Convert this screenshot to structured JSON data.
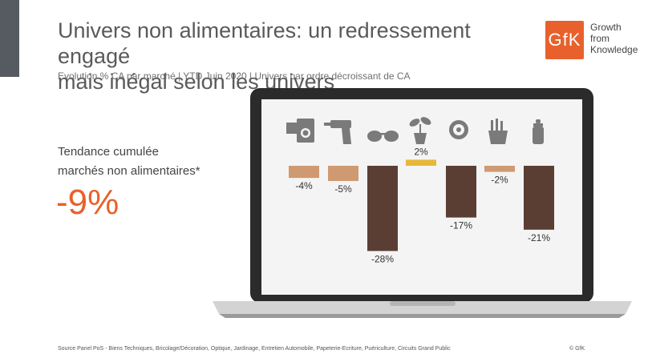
{
  "header": {
    "title_line1": "Univers non alimentaires: un redressement engagé",
    "title_line2": "mais inégal selon les univers",
    "subtitle": "Evolution % CA par marché | YTD Juin 2020 | Univers par ordre décroissant de CA"
  },
  "logo": {
    "mark": "GfK",
    "line1": "Growth",
    "line2": "from",
    "line3": "Knowledge",
    "color": "#e8612c"
  },
  "trend": {
    "label_line1": "Tendance cumulée",
    "label_line2": "marchés non alimentaires*",
    "value": "-9%"
  },
  "footer": {
    "source": "Source Panel PoS - Biens Techniques, Bricolage/Décoration, Optique, Jardinage, Entretien Automobile, Papeterie-Ecriture, Puériculture, Circuits Grand Public",
    "copyright": "© GfK"
  },
  "chart_data": {
    "type": "bar",
    "categories": [
      "appliances-icon",
      "drill-icon",
      "glasses-icon",
      "plant-icon",
      "tire-icon",
      "stationery-icon",
      "baby-bottle-icon"
    ],
    "values": [
      -4,
      -5,
      -28,
      2,
      -17,
      -2,
      -21
    ],
    "labels": [
      "-4%",
      "-5%",
      "-28%",
      "2%",
      "-17%",
      "-2%",
      "-21%"
    ],
    "colors": [
      "#cf9a72",
      "#cf9a72",
      "#5a3e34",
      "#e6b83a",
      "#5a3e34",
      "#cf9a72",
      "#5a3e34"
    ],
    "title": "",
    "xlabel": "",
    "ylabel": ""
  }
}
